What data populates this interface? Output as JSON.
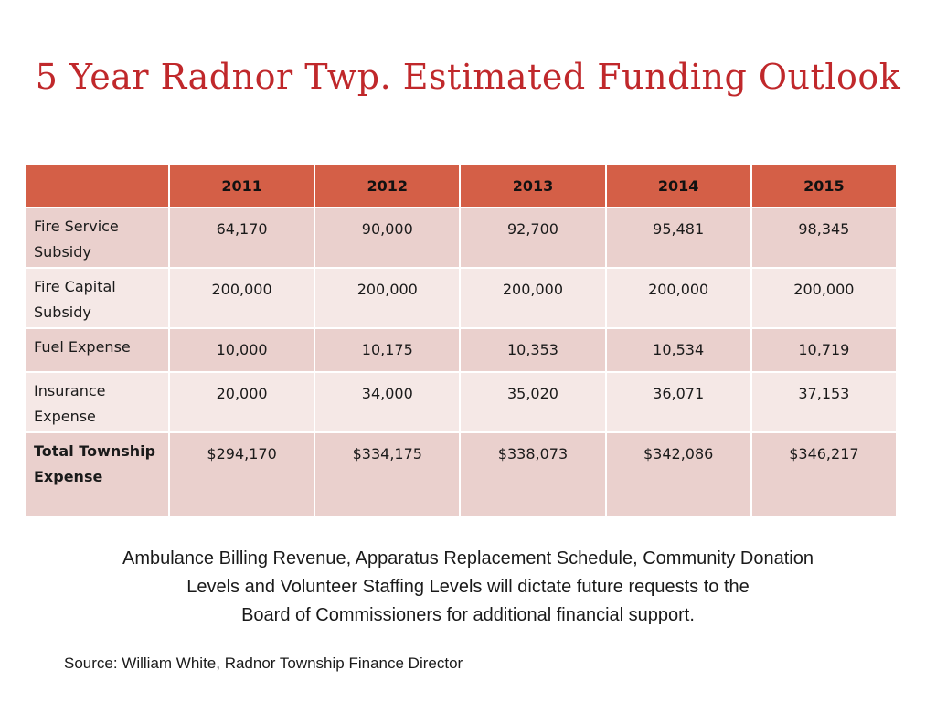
{
  "slide": {
    "title": "5 Year Radnor Twp. Estimated Funding Outlook"
  },
  "table": {
    "corner": "",
    "years": [
      "2011",
      "2012",
      "2013",
      "2014",
      "2015"
    ],
    "rows": [
      {
        "label": "Fire Service Subsidy",
        "values": [
          "64,170",
          "90,000",
          "92,700",
          "95,481",
          "98,345"
        ]
      },
      {
        "label": "Fire Capital Subsidy",
        "values": [
          "200,000",
          "200,000",
          "200,000",
          "200,000",
          "200,000"
        ]
      },
      {
        "label": "Fuel Expense",
        "values": [
          "10,000",
          "10,175",
          "10,353",
          "10,534",
          "10,719"
        ]
      },
      {
        "label": "Insurance Expense",
        "values": [
          "20,000",
          "34,000",
          "35,020",
          "36,071",
          "37,153"
        ]
      },
      {
        "label": "Total Township Expense",
        "values": [
          "$294,170",
          "$334,175",
          "$338,073",
          "$342,086",
          "$346,217"
        ]
      }
    ]
  },
  "footnote": {
    "line1": "Ambulance Billing Revenue, Apparatus Replacement Schedule, Community Donation",
    "line2": "Levels and Volunteer Staffing Levels will dictate future requests to the",
    "line3": "Board of Commissioners for additional financial support."
  },
  "source": "Source: William White, Radnor Township Finance Director",
  "colors": {
    "title": "#c0282b",
    "header_fill": "#d45f47",
    "row_dark": "#ead0cd",
    "row_light": "#f5e8e6"
  }
}
